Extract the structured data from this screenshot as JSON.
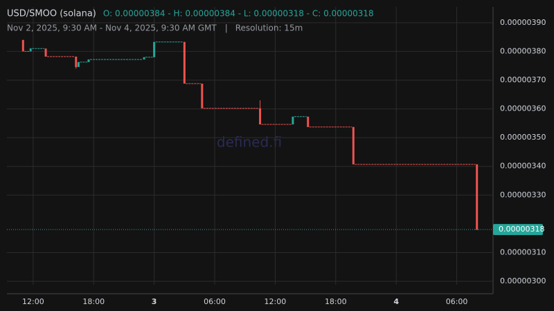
{
  "chart_data": {
    "type": "candlestick",
    "title": "USD/SMOO (solana)",
    "ohlc_text": "O: 0.00000384 - H: 0.00000384 - L: 0.00000318 - C: 0.00000318",
    "subtitle": "Nov 2, 2025, 9:30 AM - Nov 4, 2025, 9:30 AM GMT",
    "separator": "|",
    "resolution": "Resolution: 15m",
    "watermark": "defined.fi",
    "up_color": "#26a69a",
    "down_color": "#ef5350",
    "x": [
      "2025-11-02T11:00",
      "2025-11-02T11:45",
      "2025-11-02T13:15",
      "2025-11-02T16:15",
      "2025-11-02T16:30",
      "2025-11-02T17:30",
      "2025-11-02T23:00",
      "2025-11-03T00:00",
      "2025-11-03T03:00",
      "2025-11-03T04:45",
      "2025-11-03T10:30",
      "2025-11-03T13:45",
      "2025-11-03T15:15",
      "2025-11-03T19:45",
      "2025-11-04T08:00"
    ],
    "open": [
      3.84e-06,
      3.8e-06,
      3.81e-06,
      3.782e-06,
      3.746e-06,
      3.763e-06,
      3.772e-06,
      3.78e-06,
      3.833e-06,
      3.688e-06,
      3.602e-06,
      3.546e-06,
      3.573e-06,
      3.537e-06,
      3.407e-06
    ],
    "high": [
      3.84e-06,
      3.812e-06,
      3.81e-06,
      3.782e-06,
      3.763e-06,
      3.772e-06,
      3.78e-06,
      3.833e-06,
      3.833e-06,
      3.688e-06,
      3.63e-06,
      3.573e-06,
      3.573e-06,
      3.537e-06,
      3.407e-06
    ],
    "low": [
      3.8e-06,
      3.8e-06,
      3.782e-06,
      3.74e-06,
      3.746e-06,
      3.763e-06,
      3.772e-06,
      3.78e-06,
      3.688e-06,
      3.602e-06,
      3.546e-06,
      3.546e-06,
      3.537e-06,
      3.407e-06,
      3.18e-06
    ],
    "close": [
      3.8e-06,
      3.81e-06,
      3.782e-06,
      3.746e-06,
      3.763e-06,
      3.772e-06,
      3.78e-06,
      3.833e-06,
      3.688e-06,
      3.602e-06,
      3.546e-06,
      3.573e-06,
      3.537e-06,
      3.407e-06,
      3.18e-06
    ],
    "last_price": {
      "value": 3.18e-06,
      "label": "0.00000318"
    },
    "ylim": [
      2.988e-06,
      3.955e-06
    ],
    "yticks": [
      {
        "value": 3.9e-06,
        "label": "0.00000390"
      },
      {
        "value": 3.8e-06,
        "label": "0.00000380"
      },
      {
        "value": 3.7e-06,
        "label": "0.00000370"
      },
      {
        "value": 3.6e-06,
        "label": "0.00000360"
      },
      {
        "value": 3.5e-06,
        "label": "0.00000350"
      },
      {
        "value": 3.4e-06,
        "label": "0.00000340"
      },
      {
        "value": 3.3e-06,
        "label": "0.00000330"
      },
      {
        "value": 3.1e-06,
        "label": "0.00000310"
      },
      {
        "value": 3e-06,
        "label": "0.00000300"
      }
    ],
    "xlim": [
      "2025-11-02T09:24",
      "2025-11-04T09:36"
    ],
    "xticks": [
      {
        "value": "2025-11-02T12:00",
        "label": "12:00"
      },
      {
        "value": "2025-11-02T18:00",
        "label": "18:00"
      },
      {
        "value": "2025-11-03T00:00",
        "label": "3"
      },
      {
        "value": "2025-11-03T06:00",
        "label": "06:00"
      },
      {
        "value": "2025-11-03T12:00",
        "label": "12:00"
      },
      {
        "value": "2025-11-03T18:00",
        "label": "18:00"
      },
      {
        "value": "2025-11-04T00:00",
        "label": "4"
      },
      {
        "value": "2025-11-04T06:00",
        "label": "06:00"
      }
    ],
    "grid": true
  }
}
